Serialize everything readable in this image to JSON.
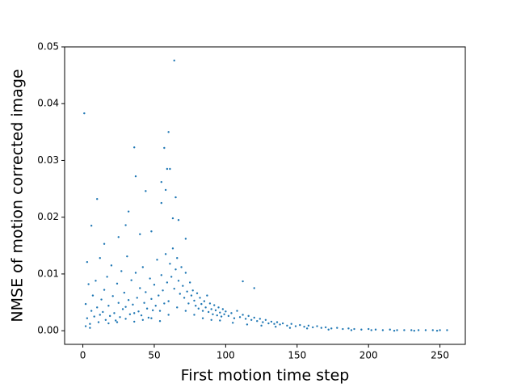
{
  "chart_data": {
    "type": "scatter",
    "xlabel": "First motion time step",
    "ylabel": "NMSE of motion corrected image",
    "color": "#1f77b4",
    "xlim": [
      -12.75,
      267.75
    ],
    "ylim": [
      -0.0024,
      0.05
    ],
    "xticks": [
      0,
      50,
      100,
      150,
      200,
      250
    ],
    "yticks": [
      {
        "value": 0,
        "label": "0.00"
      },
      {
        "value": 0.01,
        "label": "0.01"
      },
      {
        "value": 0.02,
        "label": "0.02"
      },
      {
        "value": 0.03,
        "label": "0.03"
      },
      {
        "value": 0.04,
        "label": "0.04"
      },
      {
        "value": 0.05,
        "label": "0.05"
      }
    ],
    "x": [
      2,
      2,
      3,
      3,
      4,
      5,
      6,
      7,
      8,
      9,
      10,
      11,
      12,
      13,
      14,
      15,
      16,
      17,
      18,
      19,
      20,
      21,
      22,
      23,
      24,
      25,
      26,
      27,
      28,
      29,
      30,
      31,
      32,
      33,
      34,
      35,
      36,
      37,
      38,
      39,
      40,
      41,
      42,
      43,
      44,
      45,
      46,
      47,
      48,
      49,
      50,
      51,
      52,
      53,
      54,
      55,
      56,
      57,
      58,
      59,
      60,
      61,
      62,
      63,
      64,
      65,
      66,
      67,
      68,
      69,
      70,
      71,
      72,
      73,
      74,
      75,
      76,
      77,
      78,
      79,
      80,
      81,
      82,
      83,
      84,
      85,
      86,
      87,
      88,
      89,
      90,
      91,
      92,
      93,
      94,
      95,
      96,
      97,
      98,
      99,
      100,
      102,
      104,
      106,
      108,
      110,
      112,
      114,
      116,
      118,
      120,
      122,
      124,
      126,
      128,
      130,
      132,
      134,
      136,
      138,
      140,
      143,
      146,
      149,
      152,
      155,
      158,
      161,
      164,
      167,
      170,
      174,
      178,
      182,
      186,
      190,
      195,
      200,
      205,
      210,
      215,
      220,
      225,
      230,
      235,
      240,
      245,
      250,
      255,
      5,
      12,
      18,
      24,
      30,
      36,
      42,
      48,
      54,
      60,
      66,
      72,
      78,
      84,
      90,
      96,
      105,
      115,
      125,
      135,
      145,
      157,
      172,
      188,
      202,
      218,
      232,
      248,
      1,
      64,
      60,
      36,
      57,
      59,
      61,
      10,
      55,
      37,
      44,
      58,
      65,
      32,
      6,
      63,
      67,
      55,
      30,
      25,
      40,
      48,
      15,
      72,
      112,
      120
    ],
    "values": [
      0.0008,
      0.0047,
      0.0121,
      0.0022,
      0.0082,
      0.0012,
      0.0035,
      0.0062,
      0.0025,
      0.0088,
      0.0041,
      0.0015,
      0.0128,
      0.0055,
      0.0033,
      0.0072,
      0.0019,
      0.0095,
      0.0044,
      0.0026,
      0.0115,
      0.0061,
      0.0031,
      0.0018,
      0.0083,
      0.0049,
      0.0024,
      0.0105,
      0.0038,
      0.0067,
      0.0021,
      0.0131,
      0.0054,
      0.0029,
      0.0089,
      0.0046,
      0.0016,
      0.0102,
      0.0058,
      0.0034,
      0.0075,
      0.0027,
      0.0112,
      0.0049,
      0.0068,
      0.0039,
      0.0023,
      0.0092,
      0.0056,
      0.0036,
      0.0081,
      0.0044,
      0.0125,
      0.0062,
      0.0035,
      0.0098,
      0.0071,
      0.0048,
      0.0135,
      0.0085,
      0.0052,
      0.0118,
      0.0095,
      0.0145,
      0.0074,
      0.0108,
      0.0128,
      0.0088,
      0.0065,
      0.0112,
      0.0079,
      0.0058,
      0.0102,
      0.0069,
      0.0048,
      0.0085,
      0.0062,
      0.0071,
      0.0053,
      0.0044,
      0.0066,
      0.0039,
      0.0058,
      0.0047,
      0.0035,
      0.0052,
      0.0041,
      0.0062,
      0.0033,
      0.0048,
      0.0038,
      0.0029,
      0.0045,
      0.0036,
      0.0027,
      0.0041,
      0.0032,
      0.0025,
      0.0038,
      0.0029,
      0.0034,
      0.0026,
      0.0031,
      0.0022,
      0.0035,
      0.0024,
      0.0028,
      0.0021,
      0.0026,
      0.0019,
      0.0023,
      0.0017,
      0.0021,
      0.0015,
      0.0019,
      0.0013,
      0.0016,
      0.0012,
      0.0015,
      0.0011,
      0.0013,
      0.0009,
      0.0012,
      0.0008,
      0.001,
      0.0007,
      0.0009,
      0.0006,
      0.0008,
      0.0005,
      0.0006,
      0.0004,
      0.0005,
      0.0003,
      0.0004,
      0.0003,
      0.0002,
      0.0003,
      0.0002,
      0.0001,
      0.0002,
      0.0001,
      0.0001,
      0.0001,
      0.0001,
      0.0001,
      0.0001,
      0.0001,
      0.0001,
      0.0005,
      0.0028,
      0.0013,
      0.0015,
      0.0042,
      0.0031,
      0.0019,
      0.0022,
      0.0017,
      0.0028,
      0.0041,
      0.0035,
      0.0028,
      0.0022,
      0.0019,
      0.0018,
      0.0014,
      0.0011,
      0.0009,
      0.0007,
      0.0005,
      0.0004,
      0.0002,
      0.0001,
      0.0001,
      0,
      0,
      0,
      0.0383,
      0.0476,
      0.035,
      0.0323,
      0.0322,
      0.0285,
      0.0285,
      0.0232,
      0.0262,
      0.0272,
      0.0246,
      0.0248,
      0.0235,
      0.021,
      0.0185,
      0.0198,
      0.0195,
      0.0225,
      0.0186,
      0.0165,
      0.017,
      0.0175,
      0.0153,
      0.0162,
      0.0087,
      0.0075
    ]
  }
}
